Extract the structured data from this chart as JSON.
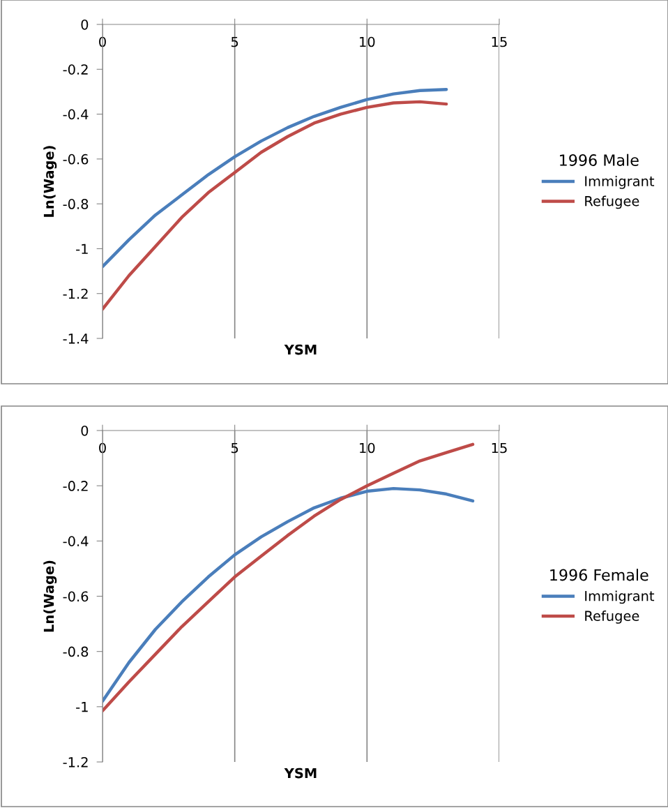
{
  "chart_data": [
    {
      "type": "line",
      "xlabel": "YSM",
      "ylabel": "Ln(Wage)",
      "legend_title": "1996 Male",
      "legend": "right",
      "grid": "x",
      "marker": "none",
      "line_style": "solid",
      "x": [
        0,
        1,
        2,
        3,
        4,
        5,
        6,
        7,
        8,
        9,
        10,
        11,
        12,
        13
      ],
      "xlim": [
        0,
        15
      ],
      "xticks": [
        0,
        5,
        10,
        15
      ],
      "ylim": [
        -1.4,
        0
      ],
      "yticks": [
        -1.4,
        -1.2,
        -1,
        -0.8,
        -0.6,
        -0.4,
        -0.2,
        0
      ],
      "series": [
        {
          "name": "Immigrant",
          "color": "#4a7ebb",
          "values": [
            -1.08,
            -0.96,
            -0.85,
            -0.76,
            -0.67,
            -0.59,
            -0.52,
            -0.46,
            -0.41,
            -0.37,
            -0.335,
            -0.31,
            -0.295,
            -0.29
          ]
        },
        {
          "name": "Refugee",
          "color": "#be4b48",
          "values": [
            -1.27,
            -1.12,
            -0.99,
            -0.86,
            -0.75,
            -0.66,
            -0.57,
            -0.5,
            -0.44,
            -0.4,
            -0.37,
            -0.35,
            -0.345,
            -0.355
          ]
        }
      ]
    },
    {
      "type": "line",
      "xlabel": "YSM",
      "ylabel": "Ln(Wage)",
      "legend_title": "1996 Female",
      "legend": "right",
      "grid": "x",
      "marker": "none",
      "line_style": "solid",
      "x": [
        0,
        1,
        2,
        3,
        4,
        5,
        6,
        7,
        8,
        9,
        10,
        11,
        12,
        13,
        14
      ],
      "xlim": [
        0,
        15
      ],
      "xticks": [
        0,
        5,
        10,
        15
      ],
      "ylim": [
        -1.2,
        0
      ],
      "yticks": [
        -1.2,
        -1,
        -0.8,
        -0.6,
        -0.4,
        -0.2,
        0
      ],
      "series": [
        {
          "name": "Immigrant",
          "color": "#4a7ebb",
          "values": [
            -0.98,
            -0.84,
            -0.72,
            -0.62,
            -0.53,
            -0.45,
            -0.385,
            -0.33,
            -0.28,
            -0.245,
            -0.22,
            -0.21,
            -0.215,
            -0.23,
            -0.255
          ]
        },
        {
          "name": "Refugee",
          "color": "#be4b48",
          "values": [
            -1.015,
            -0.91,
            -0.81,
            -0.71,
            -0.62,
            -0.53,
            -0.455,
            -0.38,
            -0.31,
            -0.25,
            -0.2,
            -0.155,
            -0.11,
            -0.08,
            -0.05
          ]
        }
      ]
    }
  ]
}
